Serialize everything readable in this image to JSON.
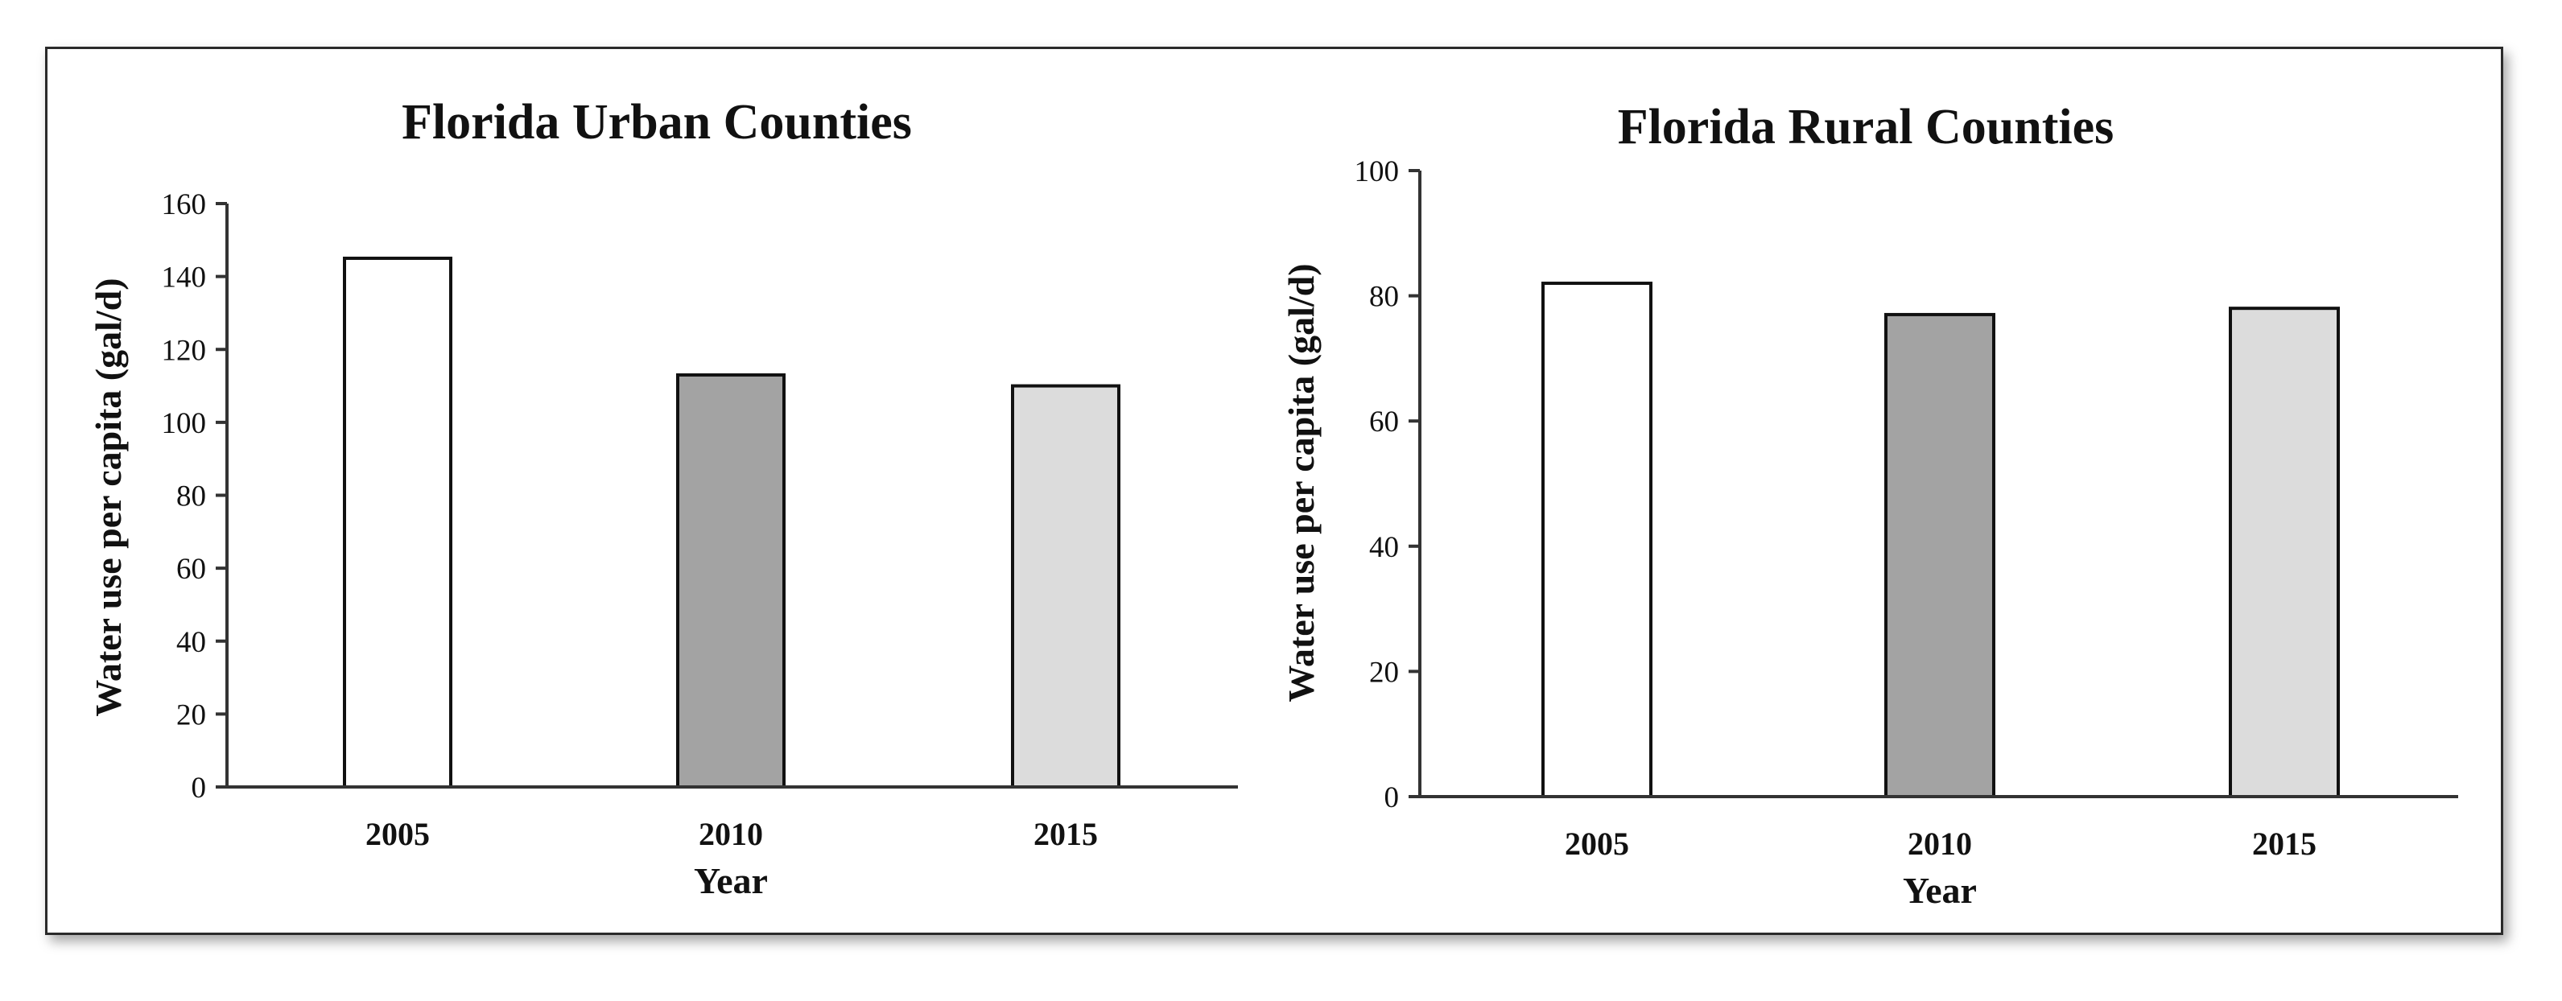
{
  "chart_data": [
    {
      "type": "bar",
      "title": "Florida Urban Counties",
      "categories": [
        "2005",
        "2010",
        "2015"
      ],
      "values": [
        145,
        113,
        110
      ],
      "bar_colors": [
        "#ffffff",
        "#a3a3a3",
        "#dcdcdc"
      ],
      "xlabel": "Year",
      "ylabel": "Water use per capita (gal/d)",
      "ylim": [
        0,
        160
      ],
      "yticks": [
        "0",
        "20",
        "40",
        "60",
        "80",
        "100",
        "120",
        "140",
        "160"
      ],
      "grid": false
    },
    {
      "type": "bar",
      "title": "Florida Rural Counties",
      "categories": [
        "2005",
        "2010",
        "2015"
      ],
      "values": [
        82,
        77,
        78
      ],
      "bar_colors": [
        "#ffffff",
        "#a3a3a3",
        "#dcdcdc"
      ],
      "xlabel": "Year",
      "ylabel": "Water use per capita (gal/d)",
      "ylim": [
        0,
        100
      ],
      "yticks": [
        "0",
        "20",
        "40",
        "60",
        "80",
        "100"
      ],
      "grid": false
    }
  ]
}
